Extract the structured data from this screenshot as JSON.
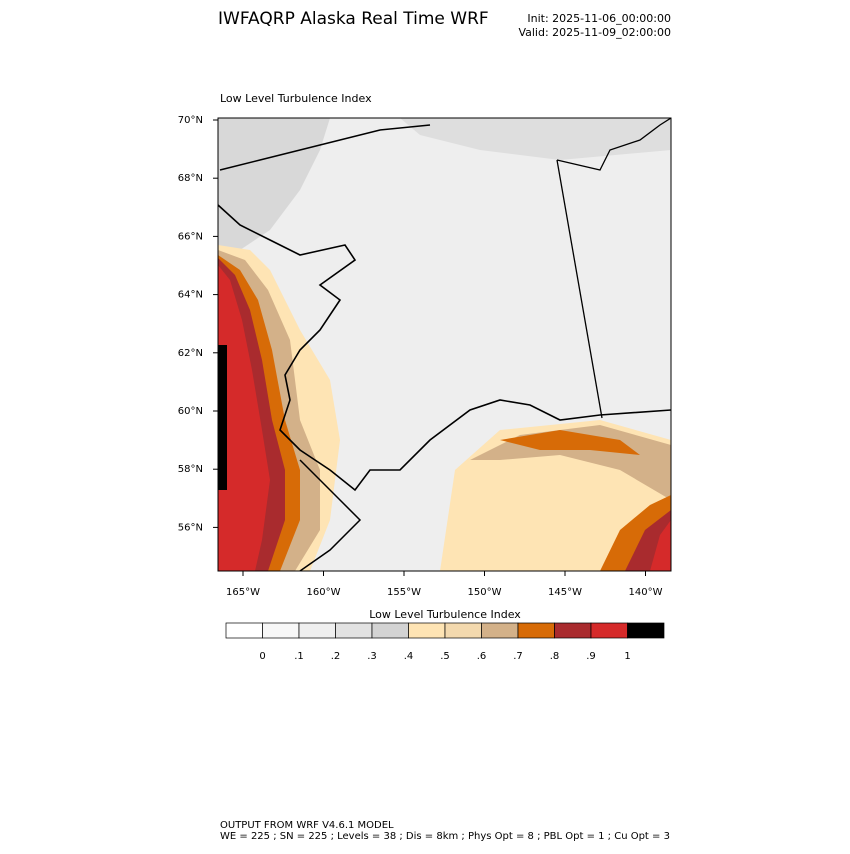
{
  "header": {
    "title": "IWFAQRP Alaska Real Time WRF",
    "init": "Init: 2025-11-06_00:00:00",
    "valid": "Valid: 2025-11-09_02:00:00"
  },
  "map": {
    "title": "Low Level Turbulence Index",
    "lat_labels": [
      {
        "value": 70,
        "label": "70°N"
      },
      {
        "value": 68,
        "label": "68°N"
      },
      {
        "value": 66,
        "label": "66°N"
      },
      {
        "value": 64,
        "label": "64°N"
      },
      {
        "value": 62,
        "label": "62°N"
      },
      {
        "value": 60,
        "label": "60°N"
      },
      {
        "value": 58,
        "label": "58°N"
      },
      {
        "value": 56,
        "label": "56°N"
      }
    ],
    "lon_labels": [
      {
        "value": -165,
        "label": "165°W"
      },
      {
        "value": -160,
        "label": "160°W"
      },
      {
        "value": -155,
        "label": "155°W"
      },
      {
        "value": -150,
        "label": "150°W"
      },
      {
        "value": -145,
        "label": "145°W"
      },
      {
        "value": -140,
        "label": "140°W"
      }
    ]
  },
  "colorbar": {
    "title": "Low Level Turbulence Index",
    "colors": [
      "#ffffff",
      "#f7f7f7",
      "#efefef",
      "#e2e2e2",
      "#d3d3d3",
      "#fee4b4",
      "#f3d9ae",
      "#d3b189",
      "#d76b07",
      "#a92b2e",
      "#d52a2a",
      "#000000"
    ],
    "ticks": [
      0,
      {
        "value": 0.1,
        "label": ".1"
      },
      {
        "value": 0.2,
        "label": ".2"
      },
      {
        "value": 0.3,
        "label": ".3"
      },
      {
        "value": 0.4,
        "label": ".4"
      },
      {
        "value": 0.5,
        "label": ".5"
      },
      {
        "value": 0.6,
        "label": ".6"
      },
      {
        "value": 0.7,
        "label": ".7"
      },
      {
        "value": 0.8,
        "label": ".8"
      },
      {
        "value": 0.9,
        "label": ".9"
      },
      1
    ]
  },
  "footer": {
    "line1": "OUTPUT FROM WRF V4.6.1 MODEL",
    "line2": "WE = 225 ; SN = 225 ; Levels = 38 ; Dis = 8km ; Phys Opt = 8 ; PBL Opt = 1 ; Cu Opt = 3"
  }
}
